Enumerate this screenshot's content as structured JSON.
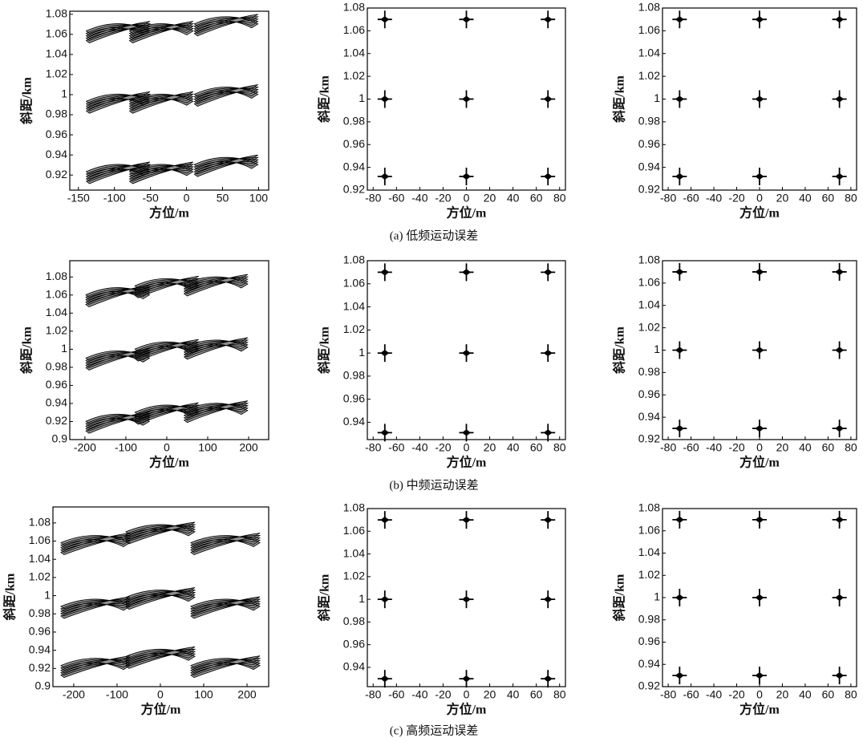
{
  "chart_data": [
    {
      "type": "scatter",
      "xlabel": "方位/m",
      "ylabel": "斜距/km",
      "x": [
        -95,
        -35,
        55,
        -95,
        -35,
        55,
        -95,
        -35,
        55
      ],
      "y": [
        1.065,
        1.065,
        1.072,
        0.995,
        0.995,
        1.002,
        0.925,
        0.925,
        0.932
      ],
      "xlim": [
        -162,
        114
      ],
      "ylim": [
        0.905,
        1.083
      ],
      "xticks": [
        -150,
        -100,
        -50,
        0,
        50,
        100
      ],
      "yticks": [
        0.92,
        0.94,
        0.96,
        0.98,
        1,
        1.02,
        1.04,
        1.06,
        1.08
      ]
    },
    {
      "type": "scatter",
      "xlabel": "方位/m",
      "ylabel": "斜距/km",
      "x": [
        -70,
        0,
        70,
        -70,
        0,
        70,
        -70,
        0,
        70
      ],
      "y": [
        1.07,
        1.07,
        1.07,
        1.0,
        1.0,
        1.0,
        0.932,
        0.932,
        0.932
      ],
      "xlim": [
        -85,
        85
      ],
      "ylim": [
        0.92,
        1.08
      ],
      "xticks": [
        -80,
        -60,
        -40,
        -20,
        0,
        20,
        40,
        60,
        80
      ],
      "yticks": [
        0.92,
        0.94,
        0.96,
        0.98,
        1,
        1.02,
        1.04,
        1.06,
        1.08
      ]
    },
    {
      "type": "scatter",
      "xlabel": "方位/m",
      "ylabel": "斜距/km",
      "x": [
        -70,
        0,
        70,
        -70,
        0,
        70,
        -70,
        0,
        70
      ],
      "y": [
        1.07,
        1.07,
        1.07,
        1.0,
        1.0,
        1.0,
        0.932,
        0.932,
        0.932
      ],
      "xlim": [
        -85,
        85
      ],
      "ylim": [
        0.92,
        1.08
      ],
      "xticks": [
        -80,
        -60,
        -40,
        -20,
        0,
        20,
        40,
        60,
        80
      ],
      "yticks": [
        0.92,
        0.94,
        0.96,
        0.98,
        1,
        1.02,
        1.04,
        1.06,
        1.08
      ]
    },
    {
      "type": "scatter",
      "xlabel": "方位/m",
      "ylabel": "斜距/km",
      "x": [
        -120,
        0,
        120,
        -120,
        0,
        120,
        -120,
        0,
        120
      ],
      "y": [
        1.062,
        1.072,
        1.074,
        0.992,
        1.002,
        1.004,
        0.922,
        0.932,
        0.934
      ],
      "xlim": [
        -237,
        249
      ],
      "ylim": [
        0.9,
        1.098
      ],
      "xticks": [
        -200,
        -100,
        0,
        100,
        200
      ],
      "yticks": [
        0.9,
        0.92,
        0.94,
        0.96,
        0.98,
        1,
        1.02,
        1.04,
        1.06,
        1.08
      ]
    },
    {
      "type": "scatter",
      "xlabel": "方位/m",
      "ylabel": "斜距/km",
      "x": [
        -70,
        0,
        70,
        -70,
        0,
        70,
        -70,
        0,
        70
      ],
      "y": [
        1.07,
        1.07,
        1.07,
        1.0,
        1.0,
        1.0,
        0.931,
        0.931,
        0.931
      ],
      "xlim": [
        -85,
        85
      ],
      "ylim": [
        0.925,
        1.08
      ],
      "xticks": [
        -80,
        -60,
        -40,
        -20,
        0,
        20,
        40,
        60,
        80
      ],
      "yticks": [
        0.94,
        0.96,
        0.98,
        1,
        1.02,
        1.04,
        1.06,
        1.08
      ]
    },
    {
      "type": "scatter",
      "xlabel": "方位/m",
      "ylabel": "斜距/km",
      "x": [
        -70,
        0,
        70,
        -70,
        0,
        70,
        -70,
        0,
        70
      ],
      "y": [
        1.07,
        1.07,
        1.07,
        1.0,
        1.0,
        1.0,
        0.93,
        0.93,
        0.93
      ],
      "xlim": [
        -85,
        85
      ],
      "ylim": [
        0.92,
        1.08
      ],
      "xticks": [
        -80,
        -60,
        -40,
        -20,
        0,
        20,
        40,
        60,
        80
      ],
      "yticks": [
        0.92,
        0.94,
        0.96,
        0.98,
        1,
        1.02,
        1.04,
        1.06,
        1.08
      ]
    },
    {
      "type": "scatter",
      "xlabel": "方位/m",
      "ylabel": "斜距/km",
      "x": [
        -150,
        0,
        150,
        -150,
        0,
        150,
        -150,
        0,
        150
      ],
      "y": [
        1.06,
        1.072,
        1.06,
        0.99,
        1.0,
        0.99,
        0.925,
        0.935,
        0.925
      ],
      "xlim": [
        -248,
        250
      ],
      "ylim": [
        0.9,
        1.0975
      ],
      "xticks": [
        -200,
        -100,
        0,
        100,
        200
      ],
      "yticks": [
        0.9,
        0.92,
        0.94,
        0.96,
        0.98,
        1,
        1.02,
        1.04,
        1.06,
        1.08
      ]
    },
    {
      "type": "scatter",
      "xlabel": "方位/m",
      "ylabel": "斜距/km",
      "x": [
        -70,
        0,
        70,
        -70,
        0,
        70,
        -70,
        0,
        70
      ],
      "y": [
        1.07,
        1.07,
        1.07,
        1.0,
        1.0,
        1.0,
        0.93,
        0.93,
        0.93
      ],
      "xlim": [
        -85,
        85
      ],
      "ylim": [
        0.923,
        1.08
      ],
      "xticks": [
        -80,
        -60,
        -40,
        -20,
        0,
        20,
        40,
        60,
        80
      ],
      "yticks": [
        0.94,
        0.96,
        0.98,
        1,
        1.02,
        1.04,
        1.06,
        1.08
      ]
    },
    {
      "type": "scatter",
      "xlabel": "方位/m",
      "ylabel": "斜距/km",
      "x": [
        -70,
        0,
        70,
        -70,
        0,
        70,
        -70,
        0,
        70
      ],
      "y": [
        1.07,
        1.07,
        1.07,
        1.0,
        1.0,
        1.0,
        0.93,
        0.93,
        0.93
      ],
      "xlim": [
        -85,
        85
      ],
      "ylim": [
        0.92,
        1.08
      ],
      "xticks": [
        -80,
        -60,
        -40,
        -20,
        0,
        20,
        40,
        60,
        80
      ],
      "yticks": [
        0.92,
        0.94,
        0.96,
        0.98,
        1,
        1.02,
        1.04,
        1.06,
        1.08
      ]
    }
  ],
  "captions": [
    "(a) 低频运动误差",
    "(b) 中频运动误差",
    "(c) 高频运动误差"
  ]
}
